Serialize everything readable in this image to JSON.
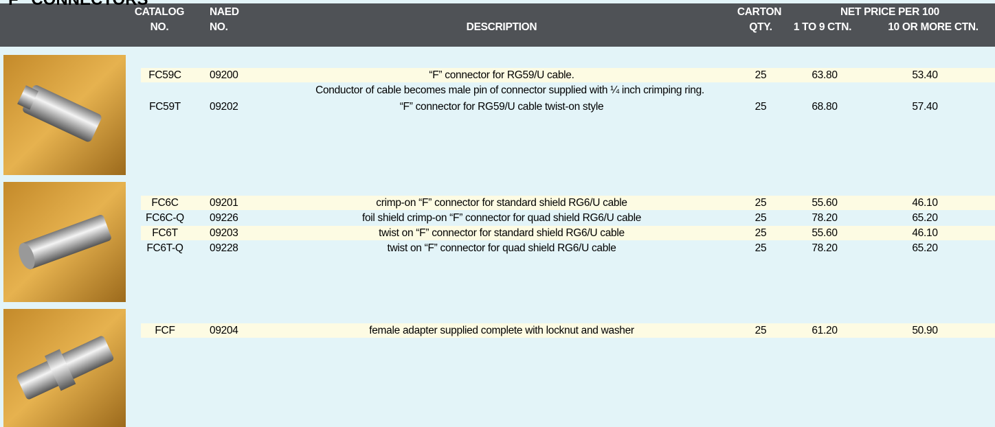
{
  "header": {
    "title": "“F” CONNECTORS",
    "catalog": [
      "CATALOG",
      "NO."
    ],
    "naed": [
      "NAED",
      "NO."
    ],
    "description": "DESCRIPTION",
    "carton": [
      "CARTON",
      "QTY."
    ],
    "net_price": "NET PRICE PER 100",
    "price_1_9": "1 TO 9 CTN.",
    "price_10": "10 OR MORE CTN."
  },
  "groups": [
    {
      "rows": [
        {
          "catalog": "FC59C",
          "naed": "09200",
          "description": "“F” connector for RG59/U cable.",
          "note": "Conductor of cable becomes male pin of connector supplied with ¼ inch crimping ring.",
          "qty": "25",
          "price_1_9": "63.80",
          "price_10": "53.40"
        },
        {
          "catalog": "FC59T",
          "naed": "09202",
          "description": "“F” connector for RG59/U cable twist-on style",
          "qty": "25",
          "price_1_9": "68.80",
          "price_10": "57.40"
        }
      ]
    },
    {
      "rows": [
        {
          "catalog": "FC6C",
          "naed": "09201",
          "description": "crimp-on “F” connector for standard shield RG6/U cable",
          "qty": "25",
          "price_1_9": "55.60",
          "price_10": "46.10"
        },
        {
          "catalog": "FC6C-Q",
          "naed": "09226",
          "description": "foil shield crimp-on “F” connector for quad shield RG6/U cable",
          "qty": "25",
          "price_1_9": "78.20",
          "price_10": "65.20"
        },
        {
          "catalog": "FC6T",
          "naed": "09203",
          "description": "twist on “F” connector for standard shield RG6/U cable",
          "qty": "25",
          "price_1_9": "55.60",
          "price_10": "46.10"
        },
        {
          "catalog": "FC6T-Q",
          "naed": "09228",
          "description": "twist on “F” connector for quad shield RG6/U cable",
          "qty": "25",
          "price_1_9": "78.20",
          "price_10": "65.20"
        }
      ]
    },
    {
      "rows": [
        {
          "catalog": "FCF",
          "naed": "09204",
          "description": "female adapter supplied complete with locknut and washer",
          "qty": "25",
          "price_1_9": "61.20",
          "price_10": "50.90"
        }
      ]
    }
  ]
}
